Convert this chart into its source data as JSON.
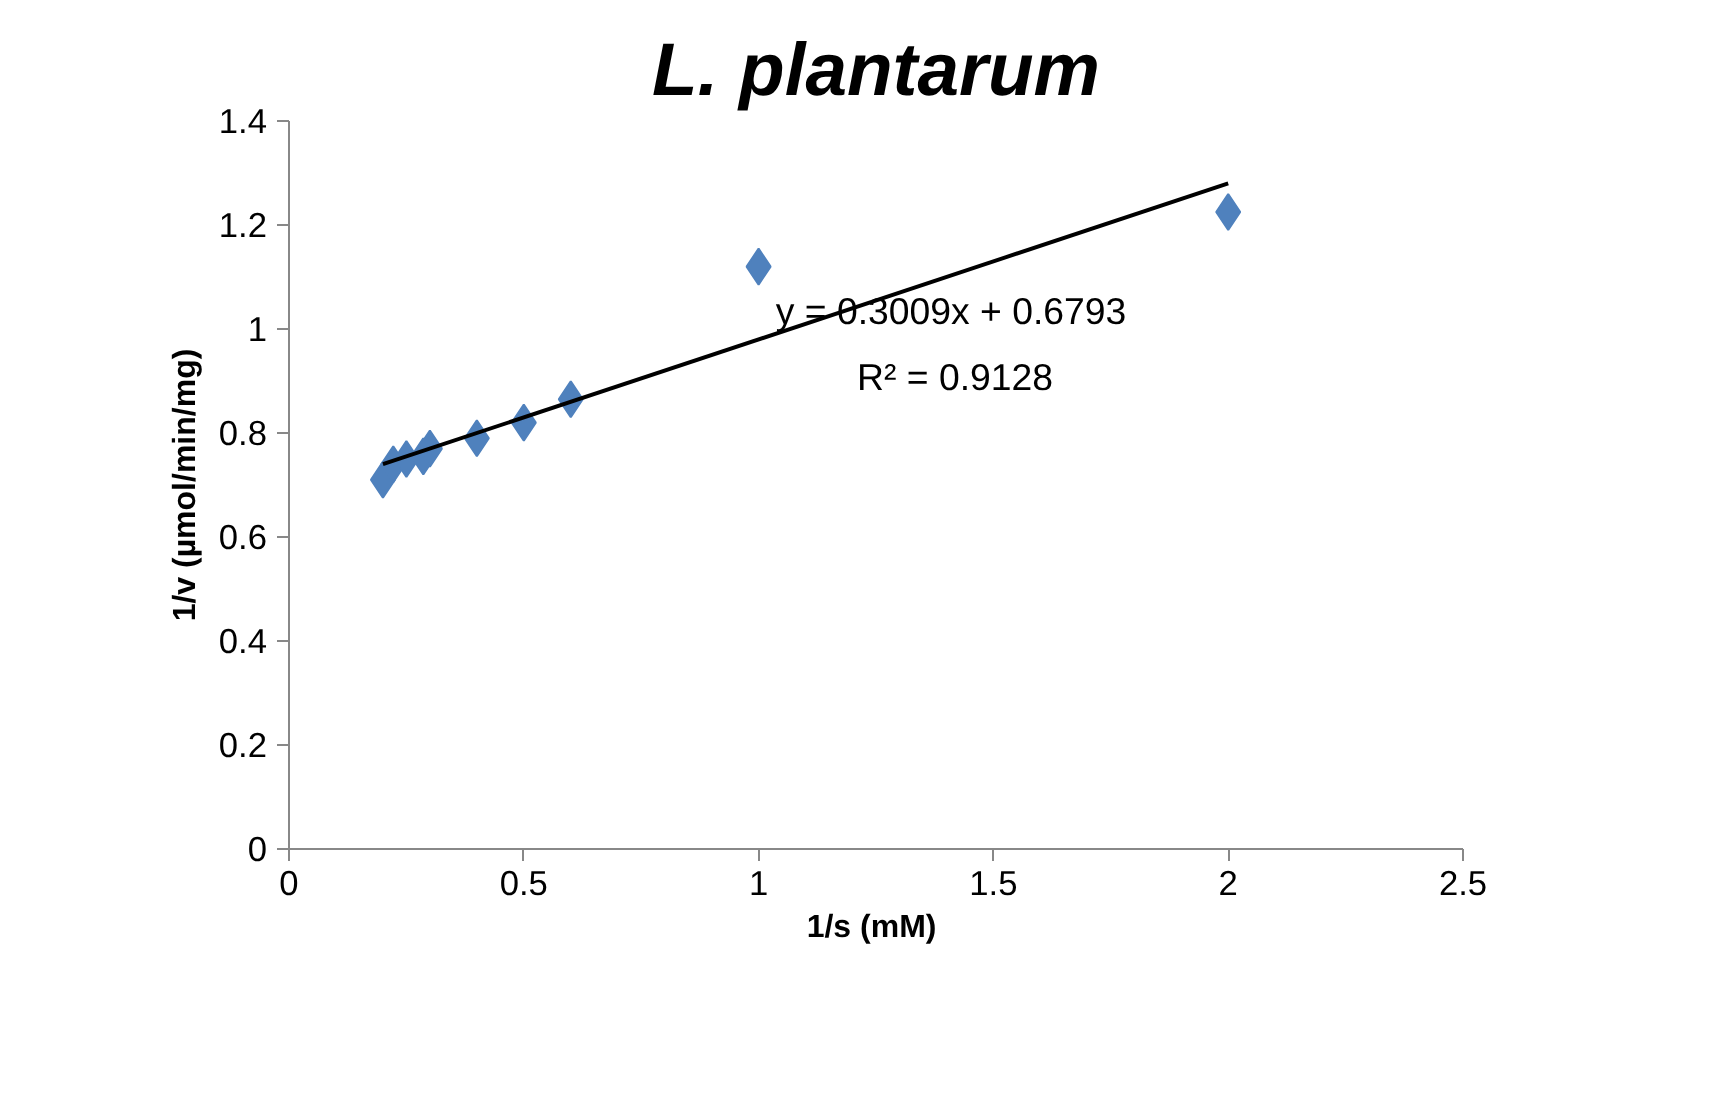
{
  "chart_data": {
    "type": "scatter",
    "title": "L. plantarum",
    "xlabel": "1/s  (mM)",
    "ylabel": "1/v (µmol/min/mg)",
    "series": [
      {
        "color": "#4f81bd",
        "x": [
          0.2,
          0.222,
          0.25,
          0.286,
          0.3,
          0.4,
          0.5,
          0.6,
          1,
          2
        ],
        "values": [
          0.71,
          0.74,
          0.75,
          0.755,
          0.77,
          0.79,
          0.82,
          0.865,
          1.12,
          1.225
        ],
        "marker": "diamond"
      },
      {
        "type": "line",
        "color": "#000000",
        "x": [
          0.2,
          2
        ],
        "values": [
          0.74,
          1.28
        ],
        "marker": "none"
      }
    ],
    "annotations": [
      "y = 0.3009x + 0.6793",
      "R² = 0.9128"
    ],
    "xlim": [
      0,
      2.5
    ],
    "xticks": [
      0,
      0.5,
      1,
      1.5,
      2,
      2.5
    ],
    "ylim": [
      0,
      1.4
    ],
    "yticks": [
      0,
      0.2,
      0.4,
      0.6,
      0.8,
      1,
      1.2,
      1.4
    ],
    "grid": false
  }
}
